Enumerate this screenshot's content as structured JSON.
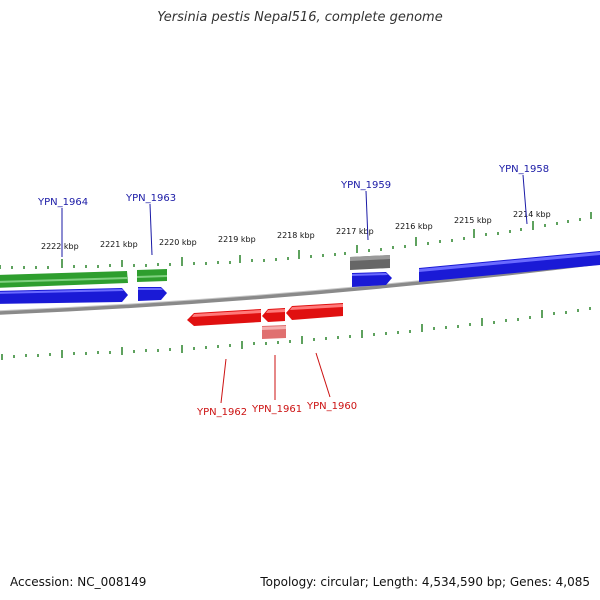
{
  "title": "Yersinia pestis Nepal516, complete genome",
  "footer": {
    "accession": "Accession: NC_008149",
    "topology": "Topology: circular; Length: 4,534,590 bp; Genes: 4,085"
  },
  "scale": {
    "labels": [
      "2222 kbp",
      "2221 kbp",
      "2220 kbp",
      "2219 kbp",
      "2218 kbp",
      "2217 kbp",
      "2216 kbp",
      "2215 kbp",
      "2214 kbp"
    ]
  },
  "gene_labels": {
    "top": [
      "YPN_1964",
      "YPN_1963",
      "YPN_1959",
      "YPN_1958"
    ],
    "bottom": [
      "YPN_1962",
      "YPN_1961",
      "YPN_1960"
    ]
  },
  "colors": {
    "forward_cds": "#1a1ad6",
    "reverse_cds": "#e01010",
    "gene_forward": "#2e9e2e",
    "gene_other": "#666666",
    "gene_reverse_light": "#e07070",
    "tick": "#1a7a1a",
    "backbone": "#808080"
  }
}
